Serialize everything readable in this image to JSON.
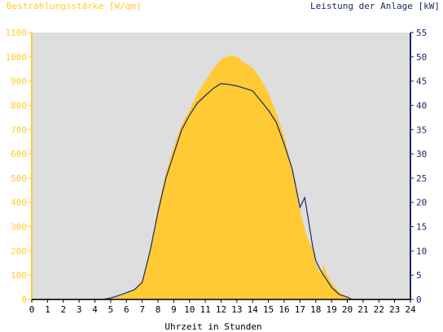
{
  "chart_data": {
    "type": "area",
    "left_axis_title": "Bestrahlungsstärke [W/qm]",
    "right_axis_title": "Leistung der Anlage [kW]",
    "xlabel": "Uhrzeit in Stunden",
    "xlim": [
      0,
      24
    ],
    "ylim_left": [
      0,
      1100
    ],
    "ylim_right": [
      0,
      55
    ],
    "x_ticks": [
      "0",
      "1",
      "2",
      "3",
      "4",
      "5",
      "6",
      "7",
      "8",
      "9",
      "10",
      "11",
      "12",
      "13",
      "14",
      "15",
      "16",
      "17",
      "18",
      "19",
      "20",
      "21",
      "22",
      "23",
      "24"
    ],
    "y_left_ticks": [
      "0",
      "100",
      "200",
      "300",
      "400",
      "500",
      "600",
      "700",
      "800",
      "900",
      "1000",
      "1100"
    ],
    "y_right_ticks": [
      "0",
      "5",
      "10",
      "15",
      "20",
      "25",
      "30",
      "35",
      "40",
      "45",
      "50",
      "55"
    ],
    "grid": false,
    "series": [
      {
        "axis": "left",
        "kind": "area",
        "x": [
          0,
          4.5,
          5,
          5.5,
          6,
          6.5,
          7,
          7.5,
          8,
          8.5,
          9,
          9.5,
          10,
          10.5,
          11,
          11.5,
          12,
          12.5,
          13,
          13.5,
          14,
          14.5,
          15,
          15.5,
          16,
          16.5,
          17,
          17.3,
          17.5,
          17.8,
          18,
          18.3,
          18.5,
          18.8,
          19,
          19.5,
          20,
          20.3,
          24
        ],
        "values": [
          0,
          0,
          5,
          12,
          25,
          40,
          80,
          200,
          380,
          520,
          630,
          720,
          780,
          850,
          900,
          950,
          990,
          1005,
          1000,
          975,
          955,
          910,
          850,
          770,
          670,
          540,
          370,
          290,
          250,
          210,
          150,
          105,
          140,
          90,
          70,
          30,
          10,
          0,
          0
        ]
      },
      {
        "axis": "right",
        "kind": "line",
        "x": [
          0,
          4.5,
          5,
          5.5,
          6,
          6.5,
          7,
          7.5,
          8,
          8.5,
          9,
          9.5,
          10,
          10.5,
          11,
          11.5,
          12,
          12.5,
          13,
          13.5,
          14,
          14.5,
          15,
          15.5,
          16,
          16.5,
          17,
          17.3,
          17.5,
          17.8,
          18,
          18.3,
          18.5,
          18.8,
          19,
          19.5,
          20,
          20.3,
          24
        ],
        "values": [
          0,
          0,
          0.3,
          0.8,
          1.4,
          2.0,
          3.5,
          10,
          18,
          25,
          30,
          35,
          38,
          40.5,
          42,
          43.5,
          44.5,
          44.3,
          44,
          43.5,
          43,
          41,
          39,
          36.5,
          32,
          27,
          19,
          21,
          17,
          11,
          8,
          6,
          5,
          3.5,
          2.5,
          1,
          0.5,
          0,
          0
        ]
      }
    ],
    "colors": {
      "area_fill": "#ffca33",
      "line": "#1a2a66",
      "plot_background": "#dedede",
      "left_axis": "#ffcc33",
      "right_axis": "#1a2a66",
      "axis_text": "#000000"
    }
  }
}
